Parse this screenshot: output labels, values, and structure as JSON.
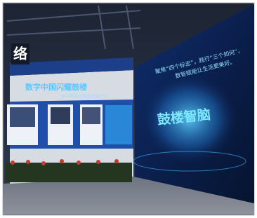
{
  "scene": {
    "sign": "络",
    "left_wall": {
      "title": "数字中国闪耀鼓楼",
      "subtitle": "数字赋能鼓楼高质量发展"
    },
    "right_wall": {
      "line1": "聚焦“四个标志”，践行“三个如何”，",
      "line2": "数智赋能让生活更美好。",
      "headline": "鼓楼智脑"
    }
  }
}
